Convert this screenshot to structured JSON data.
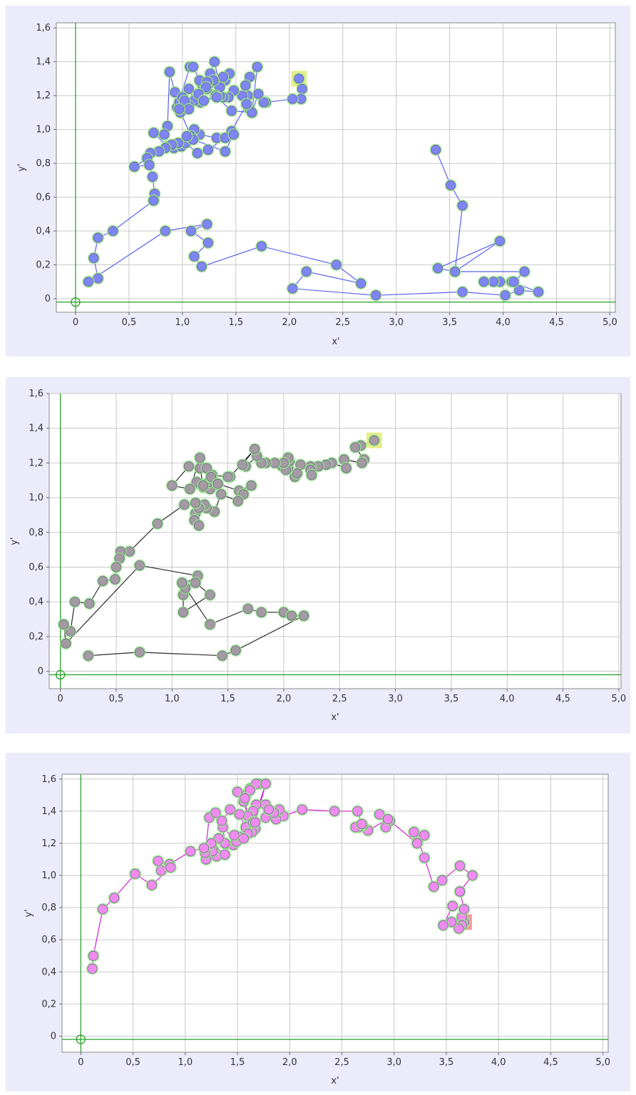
{
  "chart_data": [
    {
      "type": "scatter",
      "xlabel": "x'",
      "ylabel": "y'",
      "xlim": [
        -0.18,
        5.05
      ],
      "ylim": [
        -0.08,
        1.63
      ],
      "xticks": [
        "0",
        "0,5",
        "1,0",
        "1,5",
        "2,0",
        "2,5",
        "3,0",
        "3,5",
        "4,0",
        "4,5",
        "5,0"
      ],
      "yticks": [
        "0",
        "0,2",
        "0,4",
        "0,6",
        "0,8",
        "1,0",
        "1,2",
        "1,4",
        "1,6"
      ],
      "grid": true,
      "origin_marker": [
        0,
        -0.02
      ],
      "highlight": [
        2.09,
        1.3
      ],
      "colors": {
        "point": "#7f85f5",
        "line": "#5860ee",
        "glow": "#9be88f",
        "highlight": "#e4ec7c",
        "axis": "#22a022"
      },
      "series": [
        {
          "x": [
            2.09,
            2.12,
            2.11,
            2.03,
            1.78,
            1.76,
            1.71,
            1.65,
            1.63,
            1.61,
            1.56,
            1.48,
            1.43,
            1.38,
            1.35,
            1.4,
            1.44,
            1.38,
            1.35,
            1.3,
            1.26,
            1.23,
            1.18,
            1.19,
            1.25,
            1.29,
            1.31,
            1.17,
            1.11,
            1.06,
            1.0,
            0.98,
            0.95,
            1.07,
            1.1,
            1.16,
            1.23,
            1.22,
            1.15,
            1.06,
            0.97,
            0.93,
            1.0,
            1.02,
            1.06,
            1.2,
            1.32,
            1.46,
            1.65,
            1.7,
            1.63,
            1.59,
            1.6,
            1.6,
            1.46,
            1.32,
            1.16,
            1.11,
            1.08,
            0.97,
            0.88,
            0.86,
            0.83,
            0.73,
            0.86,
            0.92,
            0.99,
            1.03,
            1.14,
            1.24,
            1.4,
            1.48,
            1.4,
            1.1,
            1.04,
            0.96,
            0.9,
            0.84,
            0.78,
            0.7,
            0.67,
            0.55,
            0.69,
            0.72,
            0.74,
            0.73,
            0.73,
            0.35,
            0.21,
            0.17,
            0.21,
            0.12,
            0.84,
            1.23,
            1.08,
            1.24,
            1.11,
            1.18,
            1.74,
            2.44,
            2.67,
            2.16,
            2.03,
            2.81,
            3.62,
            4.02,
            4.15,
            4.33,
            4.08,
            3.97,
            3.91,
            3.82,
            4.1,
            4.2,
            3.55,
            3.39,
            3.97,
            3.55,
            3.62,
            3.51,
            3.37
          ],
          "y": [
            1.3,
            1.24,
            1.18,
            1.18,
            1.16,
            1.16,
            1.21,
            1.1,
            1.12,
            1.2,
            1.2,
            1.23,
            1.19,
            1.19,
            1.2,
            1.29,
            1.33,
            1.31,
            1.25,
            1.4,
            1.33,
            1.24,
            1.27,
            1.28,
            1.27,
            1.29,
            1.2,
            1.16,
            1.17,
            1.24,
            1.12,
            1.1,
            1.13,
            1.37,
            1.37,
            1.29,
            1.28,
            1.25,
            1.21,
            1.14,
            1.16,
            1.22,
            1.19,
            1.17,
            1.12,
            1.17,
            1.19,
            1.11,
            1.1,
            1.37,
            1.31,
            1.26,
            1.15,
            1.15,
            0.99,
            0.95,
            0.97,
            1.0,
            0.96,
            1.12,
            1.34,
            1.02,
            0.97,
            0.98,
            0.9,
            0.89,
            0.9,
            0.92,
            0.86,
            0.88,
            0.95,
            0.97,
            0.87,
            0.94,
            0.96,
            0.92,
            0.91,
            0.89,
            0.87,
            0.86,
            0.83,
            0.78,
            0.79,
            0.72,
            0.62,
            0.58,
            0.58,
            0.4,
            0.36,
            0.24,
            0.12,
            0.1,
            0.4,
            0.44,
            0.4,
            0.33,
            0.25,
            0.19,
            0.31,
            0.2,
            0.09,
            0.16,
            0.06,
            0.02,
            0.04,
            0.02,
            0.05,
            0.04,
            0.1,
            0.1,
            0.1,
            0.1,
            0.1,
            0.16,
            0.16,
            0.18,
            0.34,
            0.16,
            0.55,
            0.67,
            0.88
          ]
        }
      ]
    },
    {
      "type": "scatter",
      "xlabel": "x'",
      "ylabel": "y'",
      "xlim": [
        -0.1,
        5.02
      ],
      "ylim": [
        -0.1,
        1.6
      ],
      "xticks": [
        "0",
        "0,5",
        "1,0",
        "1,5",
        "2,0",
        "2,5",
        "3,0",
        "3,5",
        "4,0",
        "4,5",
        "5,0"
      ],
      "yticks": [
        "0",
        "0,2",
        "0,4",
        "0,6",
        "0,8",
        "1,0",
        "1,2",
        "1,4",
        "1,6"
      ],
      "grid": true,
      "origin_marker": [
        0,
        -0.02
      ],
      "highlight": [
        2.81,
        1.33
      ],
      "colors": {
        "point": "#a49aa4",
        "line": "#2a2a2a",
        "glow": "#9be88f",
        "highlight": "#e4ec7c",
        "axis": "#22a022"
      },
      "series": [
        {
          "x": [
            2.81,
            2.69,
            2.64,
            2.72,
            2.7,
            2.54,
            2.56,
            2.43,
            2.38,
            2.31,
            2.24,
            2.24,
            2.25,
            2.15,
            2.1,
            2.12,
            2.04,
            2.05,
            2.04,
            2.04,
            1.97,
            1.99,
            2.02,
            2.0,
            1.92,
            1.84,
            1.8,
            1.76,
            1.66,
            1.63,
            1.74,
            1.52,
            1.5,
            1.36,
            1.31,
            1.31,
            1.24,
            1.37,
            1.22,
            1.32,
            1.28,
            1.38,
            1.34,
            1.33,
            1.28,
            1.25,
            1.15,
            1.0,
            1.16,
            1.25,
            1.31,
            1.35,
            1.41,
            1.6,
            1.71,
            1.64,
            1.59,
            1.44,
            1.38,
            1.31,
            1.29,
            1.21,
            1.2,
            1.24,
            1.24,
            1.21,
            1.11,
            0.87,
            0.62,
            0.54,
            0.53,
            0.5,
            0.49,
            0.38,
            0.26,
            0.13,
            0.09,
            0.03,
            0.05,
            0.71,
            1.23,
            1.1,
            1.1,
            1.1,
            1.34,
            1.21,
            1.12,
            1.09,
            1.34,
            1.68,
            1.8,
            2.0,
            2.07,
            2.18,
            1.57,
            1.45,
            0.71,
            0.25
          ],
          "y": [
            1.33,
            1.3,
            1.29,
            1.22,
            1.2,
            1.22,
            1.17,
            1.2,
            1.19,
            1.18,
            1.18,
            1.16,
            1.13,
            1.19,
            1.12,
            1.14,
            1.17,
            1.21,
            1.23,
            1.23,
            1.19,
            1.18,
            1.16,
            1.2,
            1.2,
            1.2,
            1.2,
            1.24,
            1.18,
            1.19,
            1.28,
            1.12,
            1.12,
            1.13,
            1.08,
            1.07,
            1.08,
            1.07,
            1.09,
            1.07,
            1.06,
            1.09,
            1.05,
            1.09,
            1.07,
            1.17,
            1.18,
            1.07,
            1.05,
            1.23,
            1.17,
            1.12,
            1.08,
            1.04,
            1.07,
            1.02,
            0.98,
            1.02,
            0.92,
            0.94,
            0.96,
            0.91,
            0.87,
            0.84,
            0.94,
            0.97,
            0.96,
            0.85,
            0.69,
            0.69,
            0.65,
            0.6,
            0.53,
            0.52,
            0.39,
            0.4,
            0.23,
            0.27,
            0.16,
            0.61,
            0.55,
            0.5,
            0.44,
            0.34,
            0.44,
            0.51,
            0.48,
            0.51,
            0.27,
            0.36,
            0.34,
            0.34,
            0.32,
            0.32,
            0.12,
            0.09,
            0.11,
            0.09
          ]
        }
      ]
    },
    {
      "type": "scatter",
      "xlabel": "x'",
      "ylabel": "y'",
      "xlim": [
        -0.18,
        5.05
      ],
      "ylim": [
        -0.1,
        1.63
      ],
      "xticks": [
        "0",
        "0,5",
        "1,0",
        "1,5",
        "2,0",
        "2,5",
        "3,0",
        "3,5",
        "4,0",
        "4,5",
        "5,0"
      ],
      "yticks": [
        "0",
        "0,2",
        "0,4",
        "0,6",
        "0,8",
        "1,0",
        "1,2",
        "1,4",
        "1,6"
      ],
      "grid": true,
      "origin_marker": [
        0,
        -0.02
      ],
      "highlight": [
        3.67,
        0.71
      ],
      "colors": {
        "point": "#f08cf0",
        "line": "#d020d0",
        "glow": "#9be88f",
        "highlight": "#f59090",
        "axis": "#22a022"
      },
      "series": [
        {
          "x": [
            3.67,
            3.65,
            3.65,
            3.62,
            3.55,
            3.47,
            3.56,
            3.67,
            3.63,
            3.75,
            3.63,
            3.46,
            3.38,
            3.29,
            3.23,
            3.19,
            3.29,
            3.22,
            2.96,
            2.92,
            2.86,
            2.94,
            2.75,
            2.7,
            2.68,
            2.66,
            2.63,
            2.69,
            2.65,
            2.43,
            2.12,
            1.94,
            1.87,
            1.9,
            1.85,
            1.77,
            1.77,
            1.8,
            1.68,
            1.65,
            1.6,
            1.56,
            1.5,
            1.58,
            1.62,
            1.71,
            1.68,
            1.62,
            1.57,
            1.61,
            1.67,
            1.64,
            1.58,
            1.52,
            1.46,
            1.49,
            1.36,
            1.38,
            1.32,
            1.27,
            1.3,
            1.26,
            1.2,
            1.19,
            1.23,
            1.29,
            1.35,
            1.43,
            1.52,
            1.6,
            1.65,
            1.77,
            1.67,
            1.56,
            1.47,
            1.38,
            1.25,
            1.18,
            1.05,
            0.85,
            0.77,
            0.74,
            0.86,
            0.68,
            0.52,
            0.32,
            0.21,
            0.12,
            0.11
          ],
          "y": [
            0.71,
            0.74,
            0.69,
            0.67,
            0.71,
            0.69,
            0.81,
            0.79,
            0.9,
            1.0,
            1.06,
            0.97,
            0.93,
            1.11,
            1.22,
            1.27,
            1.25,
            1.2,
            1.34,
            1.3,
            1.38,
            1.35,
            1.28,
            1.31,
            1.31,
            1.3,
            1.3,
            1.32,
            1.4,
            1.4,
            1.41,
            1.37,
            1.35,
            1.41,
            1.39,
            1.36,
            1.44,
            1.41,
            1.44,
            1.4,
            1.37,
            1.46,
            1.52,
            1.5,
            1.54,
            1.57,
            1.57,
            1.53,
            1.48,
            1.31,
            1.29,
            1.27,
            1.3,
            1.24,
            1.19,
            1.21,
            1.3,
            1.2,
            1.23,
            1.16,
            1.12,
            1.15,
            1.1,
            1.14,
            1.36,
            1.39,
            1.34,
            1.41,
            1.38,
            1.26,
            1.33,
            1.57,
            1.33,
            1.23,
            1.25,
            1.13,
            1.2,
            1.17,
            1.15,
            1.07,
            1.03,
            1.09,
            1.05,
            0.94,
            1.01,
            0.86,
            0.79,
            0.5,
            0.42
          ]
        }
      ]
    }
  ]
}
